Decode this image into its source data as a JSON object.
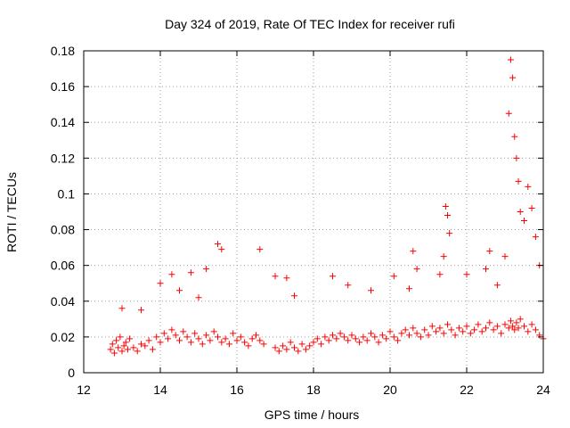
{
  "chart_data": {
    "type": "scatter",
    "title": "Day 324 of 2019, Rate Of TEC Index for receiver rufi",
    "xlabel": "GPS time / hours",
    "ylabel": "ROTI / TECUs",
    "xlim": [
      12,
      24
    ],
    "ylim": [
      0,
      0.18
    ],
    "xticks": [
      12,
      14,
      16,
      18,
      20,
      22,
      24
    ],
    "xtick_labels": [
      "12",
      "14",
      "16",
      "18",
      "20",
      "22",
      "24"
    ],
    "yticks": [
      0,
      0.02,
      0.04,
      0.06,
      0.08,
      0.1,
      0.12,
      0.14,
      0.16,
      0.18
    ],
    "ytick_labels": [
      "0",
      "0.02",
      "0.04",
      "0.06",
      "0.08",
      "0.1",
      "0.12",
      "0.14",
      "0.16",
      "0.18"
    ],
    "grid": true,
    "marker": "+",
    "marker_color": "#ff0000",
    "series": [
      {
        "name": "ROTI",
        "x": [
          12.7,
          12.75,
          12.8,
          12.85,
          12.9,
          12.95,
          13.0,
          13.05,
          13.1,
          13.15,
          13.2,
          13.3,
          13.4,
          13.5,
          13.6,
          13.7,
          13.8,
          13.9,
          14.0,
          14.1,
          14.2,
          14.3,
          14.4,
          14.5,
          14.6,
          14.7,
          14.8,
          14.9,
          15.0,
          15.1,
          15.2,
          15.3,
          15.4,
          15.5,
          15.6,
          15.7,
          15.8,
          15.9,
          16.0,
          16.1,
          16.2,
          16.3,
          16.4,
          16.5,
          16.6,
          16.7,
          17.0,
          17.1,
          17.2,
          17.3,
          17.4,
          17.5,
          17.6,
          17.7,
          17.8,
          17.9,
          18.0,
          18.1,
          18.2,
          18.3,
          18.4,
          18.5,
          18.6,
          18.7,
          18.8,
          18.9,
          19.0,
          19.1,
          19.2,
          19.3,
          19.4,
          19.5,
          19.6,
          19.7,
          19.8,
          19.9,
          20.0,
          20.1,
          20.2,
          20.3,
          20.4,
          20.5,
          20.6,
          20.7,
          20.8,
          20.9,
          21.0,
          21.1,
          21.2,
          21.3,
          21.4,
          21.5,
          21.6,
          21.7,
          21.8,
          21.9,
          22.0,
          22.1,
          22.2,
          22.3,
          22.4,
          22.5,
          22.6,
          22.7,
          22.8,
          22.9,
          23.0,
          23.1,
          23.15,
          23.2,
          23.25,
          23.3,
          23.35,
          23.4,
          23.5,
          23.6,
          23.7,
          23.8,
          23.9,
          24.0,
          13.0,
          13.5,
          14.0,
          14.3,
          14.5,
          14.8,
          15.0,
          15.2,
          15.5,
          15.6,
          16.6,
          17.0,
          17.3,
          17.5,
          18.5,
          18.9,
          19.5,
          20.1,
          20.5,
          20.6,
          20.7,
          21.3,
          21.4,
          21.45,
          21.5,
          21.55,
          22.0,
          22.5,
          22.6,
          22.8,
          23.0,
          23.1,
          23.15,
          23.2,
          23.25,
          23.3,
          23.35,
          23.4,
          23.5,
          23.6,
          23.7,
          23.8,
          23.9
        ],
        "y": [
          0.013,
          0.016,
          0.011,
          0.018,
          0.014,
          0.02,
          0.012,
          0.015,
          0.017,
          0.013,
          0.019,
          0.014,
          0.012,
          0.016,
          0.015,
          0.018,
          0.013,
          0.02,
          0.017,
          0.022,
          0.019,
          0.024,
          0.021,
          0.018,
          0.023,
          0.02,
          0.017,
          0.022,
          0.019,
          0.016,
          0.021,
          0.018,
          0.023,
          0.02,
          0.017,
          0.019,
          0.016,
          0.022,
          0.018,
          0.02,
          0.017,
          0.015,
          0.019,
          0.021,
          0.018,
          0.016,
          0.014,
          0.012,
          0.015,
          0.013,
          0.017,
          0.014,
          0.012,
          0.016,
          0.013,
          0.015,
          0.017,
          0.019,
          0.016,
          0.02,
          0.018,
          0.021,
          0.019,
          0.022,
          0.02,
          0.018,
          0.021,
          0.019,
          0.017,
          0.02,
          0.018,
          0.022,
          0.02,
          0.017,
          0.021,
          0.019,
          0.023,
          0.02,
          0.018,
          0.022,
          0.024,
          0.021,
          0.025,
          0.022,
          0.02,
          0.024,
          0.021,
          0.026,
          0.023,
          0.025,
          0.022,
          0.027,
          0.024,
          0.021,
          0.025,
          0.023,
          0.026,
          0.022,
          0.024,
          0.027,
          0.023,
          0.025,
          0.028,
          0.024,
          0.026,
          0.022,
          0.027,
          0.025,
          0.029,
          0.026,
          0.024,
          0.028,
          0.025,
          0.03,
          0.026,
          0.023,
          0.027,
          0.024,
          0.021,
          0.019,
          0.036,
          0.035,
          0.05,
          0.055,
          0.046,
          0.056,
          0.042,
          0.058,
          0.072,
          0.069,
          0.069,
          0.054,
          0.053,
          0.043,
          0.054,
          0.049,
          0.046,
          0.054,
          0.047,
          0.068,
          0.058,
          0.055,
          0.065,
          0.093,
          0.088,
          0.078,
          0.055,
          0.058,
          0.068,
          0.049,
          0.065,
          0.145,
          0.175,
          0.165,
          0.132,
          0.12,
          0.107,
          0.09,
          0.085,
          0.104,
          0.092,
          0.076,
          0.06
        ]
      }
    ]
  }
}
